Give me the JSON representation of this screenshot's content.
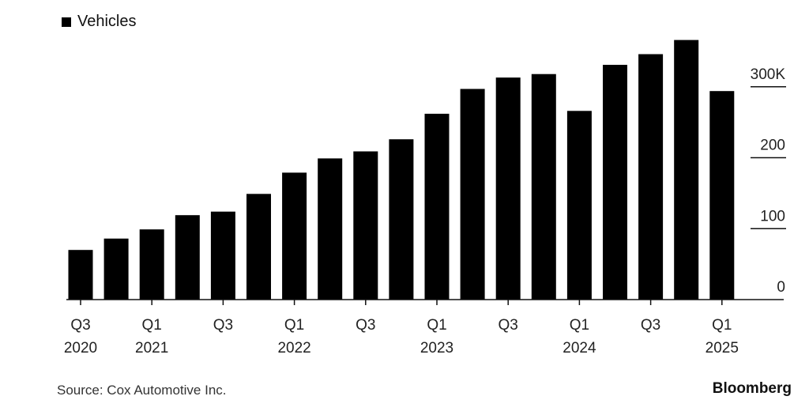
{
  "legend": {
    "label": "Vehicles"
  },
  "source": "Source: Cox Automotive Inc.",
  "brand": "Bloomberg",
  "colors": {
    "bar": "#000000",
    "axis": "#111111",
    "text": "#222222"
  },
  "chart_data": {
    "type": "bar",
    "categories": [
      "Q3 2020",
      "Q4 2020",
      "Q1 2021",
      "Q2 2021",
      "Q3 2021",
      "Q4 2021",
      "Q1 2022",
      "Q2 2022",
      "Q3 2022",
      "Q4 2022",
      "Q1 2023",
      "Q2 2023",
      "Q3 2023",
      "Q4 2023",
      "Q1 2024",
      "Q2 2024",
      "Q3 2024",
      "Q4 2024",
      "Q1 2025"
    ],
    "series": [
      {
        "name": "Vehicles",
        "values": [
          70,
          86,
          99,
          119,
          124,
          149,
          179,
          199,
          209,
          226,
          262,
          297,
          313,
          318,
          266,
          331,
          346,
          366,
          294
        ]
      }
    ],
    "ylim": [
      0,
      370
    ],
    "y_ticks": [
      0,
      100,
      200,
      300
    ],
    "y_tick_labels": [
      "0",
      "100",
      "200",
      "300K"
    ],
    "y_axis_position": "right",
    "x_tick_labels": [
      {
        "index": 0,
        "line1": "Q3",
        "line2": "2020"
      },
      {
        "index": 2,
        "line1": "Q1",
        "line2": "2021"
      },
      {
        "index": 4,
        "line1": "Q3",
        "line2": ""
      },
      {
        "index": 6,
        "line1": "Q1",
        "line2": "2022"
      },
      {
        "index": 8,
        "line1": "Q3",
        "line2": ""
      },
      {
        "index": 10,
        "line1": "Q1",
        "line2": "2023"
      },
      {
        "index": 12,
        "line1": "Q3",
        "line2": ""
      },
      {
        "index": 14,
        "line1": "Q1",
        "line2": "2024"
      },
      {
        "index": 16,
        "line1": "Q3",
        "line2": ""
      },
      {
        "index": 18,
        "line1": "Q1",
        "line2": "2025"
      }
    ],
    "legend_position": "top-left",
    "grid": false
  }
}
